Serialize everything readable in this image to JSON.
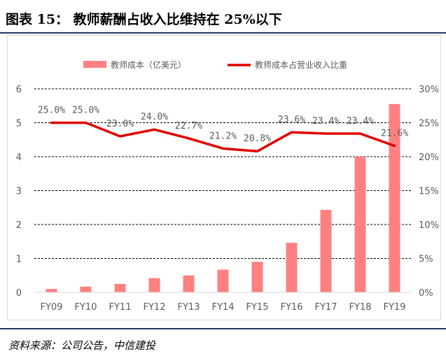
{
  "figure": {
    "title": "图表 15：   教师薪酬占收入比维持在 25%以下",
    "source": "资料来源：公司公告，中信建投"
  },
  "colors": {
    "bar": "#ff8080",
    "line": "#e00000",
    "grid": "#000000",
    "text": "#595959",
    "rule": "#1f3864"
  },
  "chart_data": {
    "type": "bar+line",
    "categories": [
      "FY09",
      "FY10",
      "FY11",
      "FY12",
      "FY13",
      "FY14",
      "FY15",
      "FY16",
      "FY17",
      "FY18",
      "FY19"
    ],
    "series": [
      {
        "name": "教师成本（亿美元）",
        "type": "bar",
        "axis": "left",
        "values": [
          0.1,
          0.17,
          0.25,
          0.42,
          0.5,
          0.67,
          0.9,
          1.46,
          2.43,
          4.0,
          5.55
        ]
      },
      {
        "name": "教师成本占营业收入比重",
        "type": "line",
        "axis": "right",
        "values": [
          25.0,
          25.0,
          23.0,
          24.0,
          22.7,
          21.2,
          20.8,
          23.6,
          23.4,
          23.4,
          21.6
        ],
        "labels": [
          "25.0%",
          "25.0%",
          "23.0%",
          "24.0%",
          "22.7%",
          "21.2%",
          "20.8%",
          "23.6%",
          "23.4%",
          "23.4%",
          "21.6%"
        ]
      }
    ],
    "y_left": {
      "min": 0,
      "max": 6,
      "ticks": [
        "0",
        "1",
        "2",
        "3",
        "4",
        "5",
        "6"
      ]
    },
    "y_right": {
      "min": 0,
      "max": 30,
      "ticks": [
        "0%",
        "5%",
        "10%",
        "15%",
        "20%",
        "25%",
        "30%"
      ]
    },
    "grid": "dashed horizontal",
    "legend_position": "top"
  }
}
